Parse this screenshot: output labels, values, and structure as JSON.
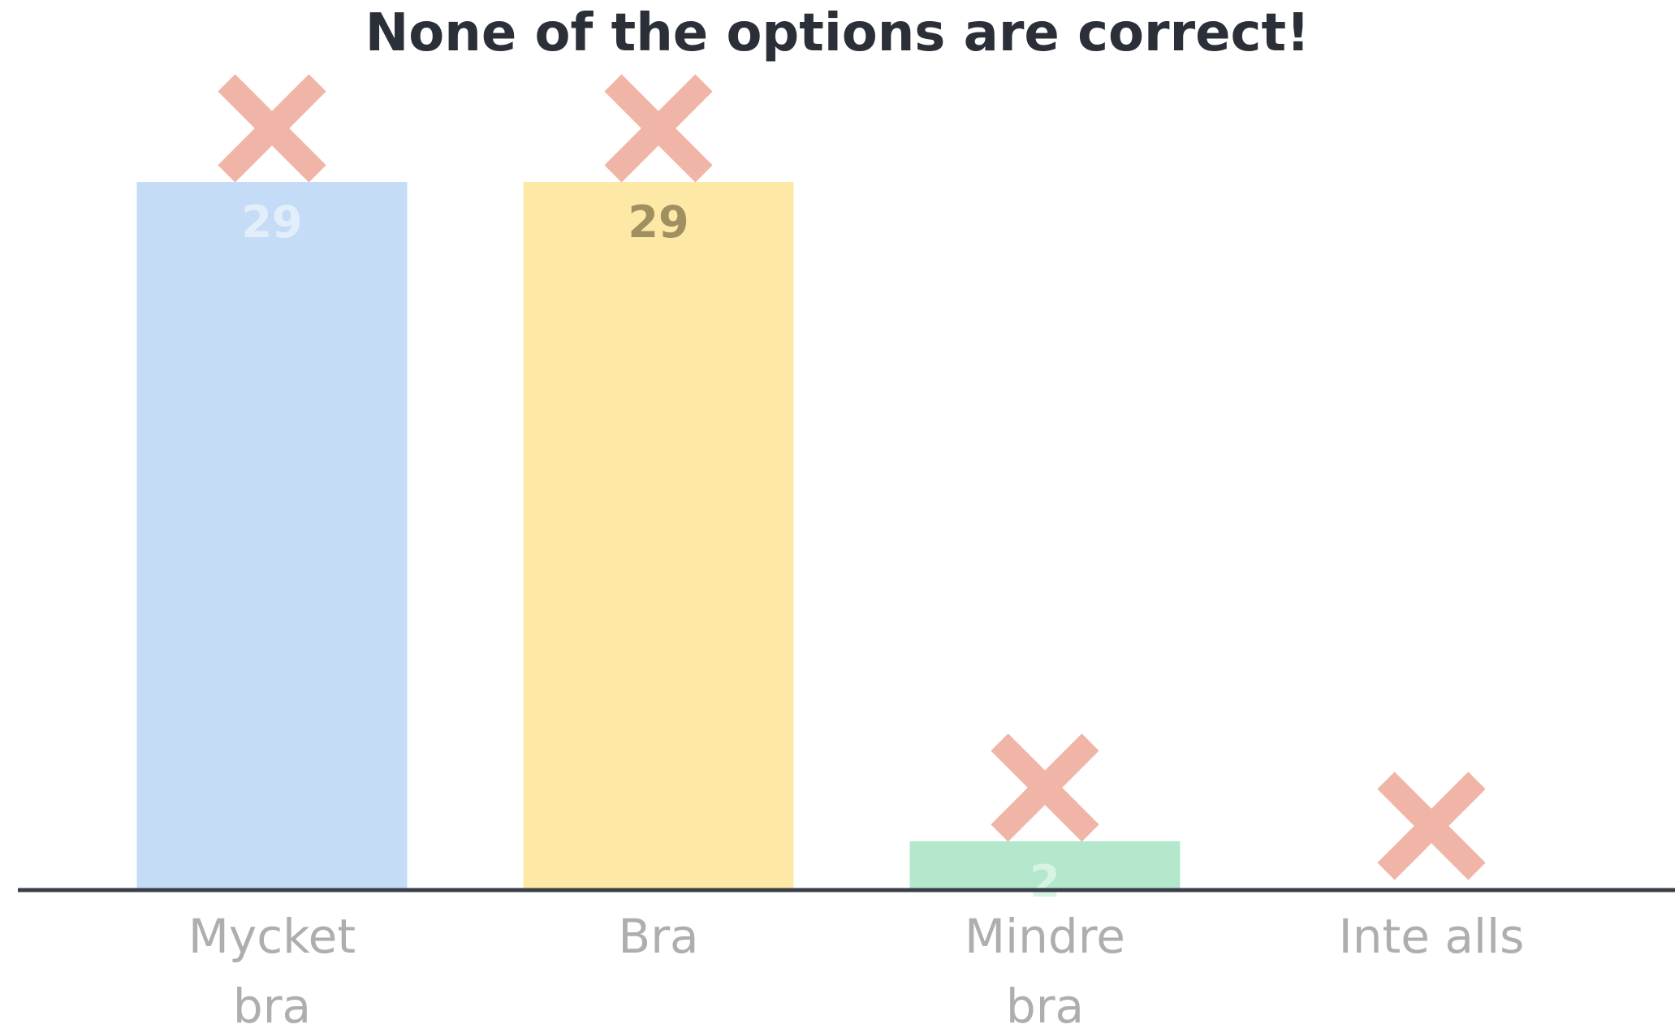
{
  "chart_data": {
    "type": "bar",
    "title": "None of the options are correct!",
    "categories": [
      "Mycket bra",
      "Bra",
      "Mindre bra",
      "Inte alls"
    ],
    "values": [
      29,
      29,
      2,
      0
    ],
    "colors": [
      "#c5dcf7",
      "#fde8a6",
      "#b3e8cc",
      "#f6c7c7"
    ]
  }
}
